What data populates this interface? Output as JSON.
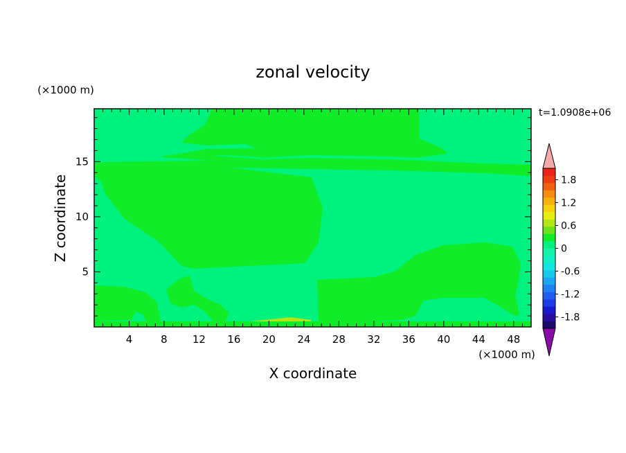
{
  "chart_data": {
    "type": "heatmap",
    "title": "zonal velocity",
    "xlabel": "X coordinate",
    "ylabel": "Z coordinate",
    "x_unit": "(×1000 m)",
    "y_unit": "(×1000 m)",
    "time_label": "t=1.0908e+06",
    "xlim": [
      0,
      50
    ],
    "ylim": [
      0,
      19.8
    ],
    "x_ticks": [
      4,
      8,
      12,
      16,
      20,
      24,
      28,
      32,
      36,
      40,
      44,
      48
    ],
    "y_ticks": [
      5,
      10,
      15
    ],
    "colorbar": {
      "levels": [
        -2.1,
        -1.95,
        -1.8,
        -1.65,
        -1.5,
        -1.35,
        -1.2,
        -1.05,
        -0.9,
        -0.75,
        -0.6,
        -0.45,
        -0.3,
        -0.15,
        0,
        0.15,
        0.3,
        0.45,
        0.6,
        0.75,
        0.9,
        1.05,
        1.2,
        1.35,
        1.5,
        1.65,
        1.8,
        1.95,
        2.1
      ],
      "colors": [
        "#1a0a6a",
        "#2a0ca0",
        "#1a1acc",
        "#1e3de6",
        "#1f5ef0",
        "#1e82f2",
        "#1aa6f0",
        "#16c8ec",
        "#12e6e0",
        "#10f0c0",
        "#14f5a8",
        "#00f27e",
        "#10ec28",
        "#6be21a",
        "#b4e616",
        "#e6ee10",
        "#f5d20c",
        "#f5b00e",
        "#f48c10",
        "#f06010",
        "#ec3c12",
        "#ea2418"
      ],
      "tick_labels": [
        "1.8",
        "1.2",
        "0.6",
        "0",
        "-0.6",
        "-1.2",
        "-1.8"
      ],
      "tick_values": [
        1.8,
        1.2,
        0.6,
        0,
        -0.6,
        -1.2,
        -1.8
      ],
      "over_color": "#f4aaaa",
      "under_color": "#8a0ca8"
    },
    "field_colors": {
      "background": "#00f27e",
      "positive": "#10ec28",
      "strong_positive": "#b4e616"
    }
  }
}
